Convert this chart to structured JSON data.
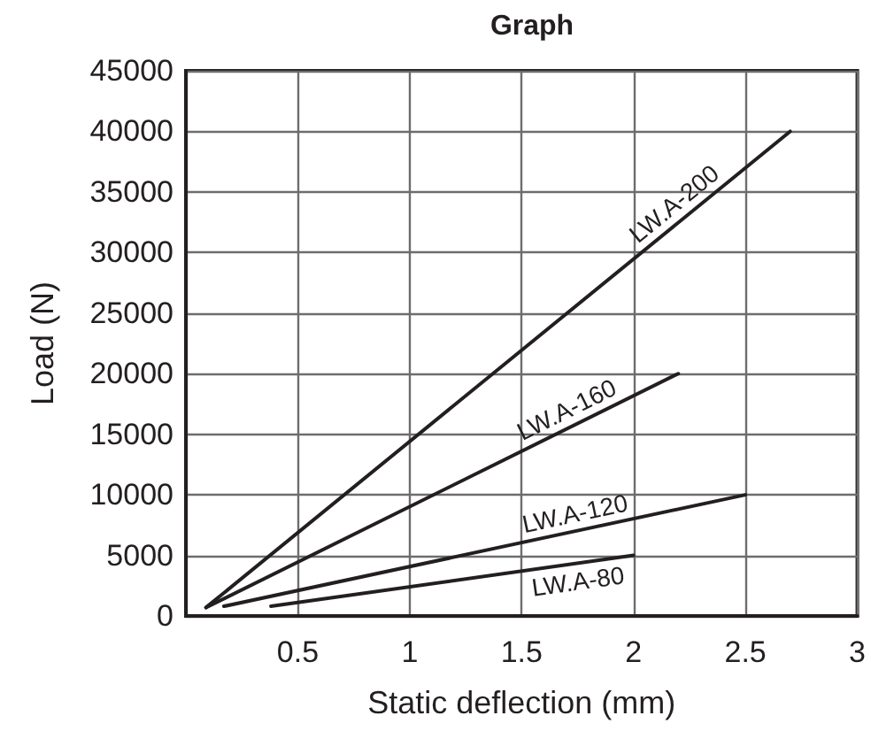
{
  "chart_data": {
    "type": "line",
    "title": "Graph",
    "xlabel": "Static deflection (mm)",
    "ylabel": "Load (N)",
    "series": [
      {
        "name": "LW.A-200",
        "color": "#231f20",
        "x": [
          0.09,
          2.7
        ],
        "values": [
          700,
          40000
        ]
      },
      {
        "name": "LW.A-160",
        "color": "#231f20",
        "x": [
          0.09,
          2.2
        ],
        "values": [
          700,
          20000
        ]
      },
      {
        "name": "LW.A-120",
        "color": "#231f20",
        "x": [
          0.17,
          2.5
        ],
        "values": [
          800,
          10000
        ]
      },
      {
        "name": "LW.A-80",
        "color": "#231f20",
        "x": [
          0.38,
          2.0
        ],
        "values": [
          800,
          5000
        ]
      }
    ],
    "xlim": [
      0,
      3
    ],
    "ylim": [
      0,
      45000
    ],
    "xticks": [
      {
        "value": 0,
        "label": null
      },
      0.5,
      1,
      1.5,
      2,
      2.5,
      3
    ],
    "yticks": [
      0,
      5000,
      10000,
      15000,
      20000,
      25000,
      30000,
      35000,
      40000,
      45000
    ],
    "grid": true,
    "legend": false,
    "marker": "none",
    "line_style": "solid"
  }
}
